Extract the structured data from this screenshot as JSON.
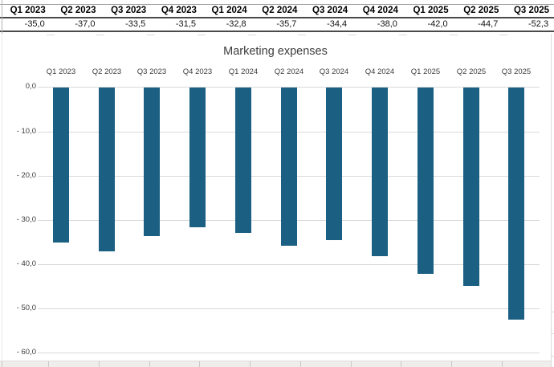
{
  "table": {
    "headers": [
      "Q1 2023",
      "Q2 2023",
      "Q3 2023",
      "Q4 2023",
      "Q1 2024",
      "Q2 2024",
      "Q3 2024",
      "Q4 2024",
      "Q1 2025",
      "Q2 2025",
      "Q3 2025"
    ],
    "values_display": [
      "-35,0",
      "-37,0",
      "-33,5",
      "-31,5",
      "-32,8",
      "-35,7",
      "-34,4",
      "-38,0",
      "-42,0",
      "-44,7",
      "-52,3"
    ]
  },
  "chart_data": {
    "type": "bar",
    "title": "Marketing expenses",
    "categories": [
      "Q1 2023",
      "Q2 2023",
      "Q3 2023",
      "Q4 2023",
      "Q1 2024",
      "Q2 2024",
      "Q3 2024",
      "Q4 2024",
      "Q1 2025",
      "Q2 2025",
      "Q3 2025"
    ],
    "values": [
      -35.0,
      -37.0,
      -33.5,
      -31.5,
      -32.8,
      -35.7,
      -34.4,
      -38.0,
      -42.0,
      -44.7,
      -52.3
    ],
    "xlabel": "",
    "ylabel": "",
    "ylim": [
      -60,
      0
    ],
    "yticks": [
      0,
      -10,
      -20,
      -30,
      -40,
      -50,
      -60
    ],
    "ytick_labels": [
      "0,0",
      "- 10,0",
      "- 20,0",
      "- 30,0",
      "- 40,0",
      "- 50,0",
      "- 60,0"
    ],
    "grid": true,
    "legend_position": "none",
    "category_labels_position": "top",
    "bar_color": "#1B5F82",
    "gridline_color": "#D9D9D9"
  }
}
